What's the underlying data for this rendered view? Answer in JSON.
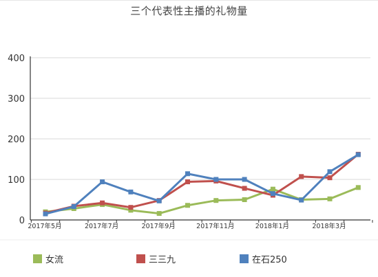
{
  "chart_data": {
    "type": "line",
    "title": "三个代表性主播的礼物量",
    "x": [
      "2017-05",
      "2017-06",
      "2017-07",
      "2017-08",
      "2017-09",
      "2017-10",
      "2017-11",
      "2017-12",
      "2018-01",
      "2018-02",
      "2018-03",
      "2018-04"
    ],
    "xtick_labels": [
      {
        "at": "2017-05",
        "label": "2017年5月"
      },
      {
        "at": "2017-07",
        "label": "2017年7月"
      },
      {
        "at": "2017-09",
        "label": "2017年9月"
      },
      {
        "at": "2017-11",
        "label": "2017年11月"
      },
      {
        "at": "2018-01",
        "label": "2018年1月"
      },
      {
        "at": "2018-03",
        "label": "2018年3月"
      }
    ],
    "ylim": [
      0,
      400
    ],
    "yticks": [
      0,
      100,
      200,
      300,
      400
    ],
    "grid": "horizontal",
    "legend_position": "bottom",
    "series": [
      {
        "name": "女流",
        "color": "#9bbb59",
        "values": [
          20,
          28,
          38,
          24,
          16,
          36,
          48,
          50,
          76,
          50,
          52,
          80
        ]
      },
      {
        "name": "三三九",
        "color": "#c0504d",
        "values": [
          17,
          34,
          42,
          31,
          48,
          94,
          96,
          78,
          61,
          107,
          104,
          162
        ]
      },
      {
        "name": "在石250",
        "color": "#4f81bd",
        "values": [
          15,
          33,
          94,
          69,
          47,
          114,
          100,
          100,
          65,
          49,
          119,
          161
        ]
      }
    ]
  }
}
